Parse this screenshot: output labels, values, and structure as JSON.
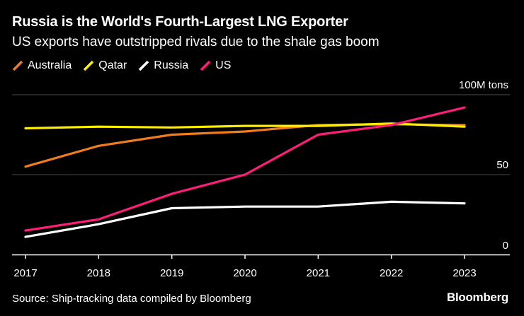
{
  "title": "Russia is the World's Fourth-Largest LNG Exporter",
  "subtitle": "US exports have outstripped rivals due to the shale gas boom",
  "legend": [
    {
      "name": "Australia",
      "color": "#f07c1e"
    },
    {
      "name": "Qatar",
      "color": "#ffee00"
    },
    {
      "name": "Russia",
      "color": "#ffffff"
    },
    {
      "name": "US",
      "color": "#ff1d7a"
    }
  ],
  "source": "Source: Ship-tracking data compiled by Bloomberg",
  "brand": "Bloomberg",
  "chart_data": {
    "type": "line",
    "title": "Russia is the World's Fourth-Largest LNG Exporter",
    "subtitle": "US exports have outstripped rivals due to the shale gas boom",
    "x": [
      "2017",
      "2018",
      "2019",
      "2020",
      "2021",
      "2022",
      "2023"
    ],
    "y_unit_label": "100M tons",
    "yticks": [
      {
        "value": 100,
        "label": "100M tons"
      },
      {
        "value": 50,
        "label": "50"
      },
      {
        "value": 0,
        "label": "0"
      }
    ],
    "ylim": [
      0,
      100
    ],
    "grid": true,
    "series": [
      {
        "name": "Australia",
        "color": "#f07c1e",
        "values": [
          55,
          68,
          75,
          77,
          81,
          81.5,
          81
        ]
      },
      {
        "name": "Qatar",
        "color": "#ffee00",
        "values": [
          79,
          80,
          79.5,
          80.5,
          80.5,
          82,
          80
        ]
      },
      {
        "name": "Russia",
        "color": "#ffffff",
        "values": [
          11,
          19,
          29,
          30,
          30,
          33,
          32
        ]
      },
      {
        "name": "US",
        "color": "#ff1d7a",
        "values": [
          15,
          22,
          38,
          50,
          75,
          81,
          92
        ]
      }
    ]
  }
}
